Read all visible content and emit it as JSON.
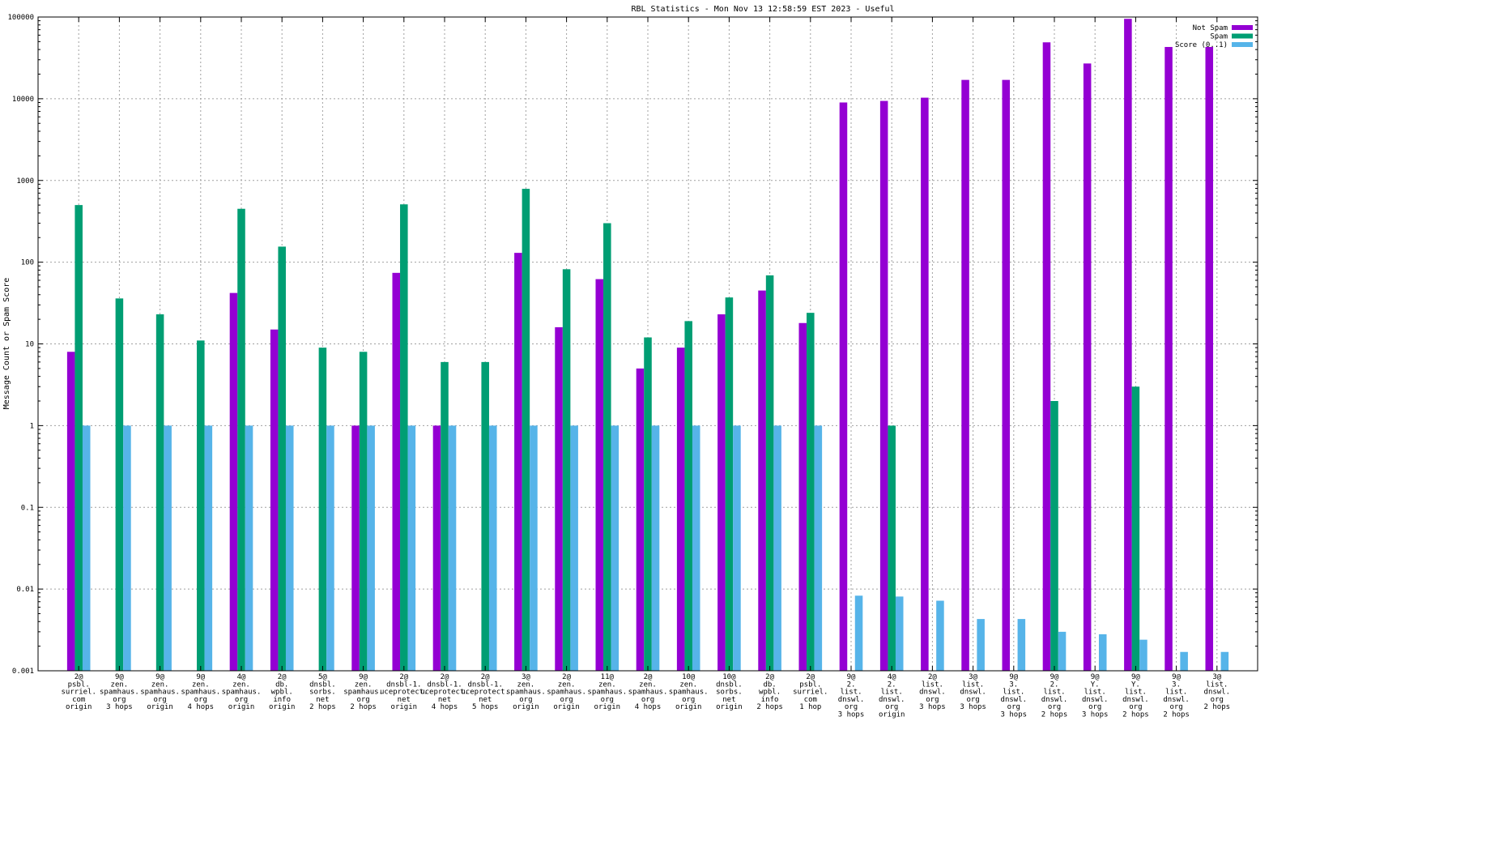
{
  "chart_data": {
    "type": "bar",
    "title": "RBL Statistics - Mon Nov 13 12:58:59 EST 2023 - Useful",
    "xlabel": "",
    "ylabel": "Message Count or Spam Score",
    "yscale": "log",
    "ylim": [
      0.001,
      100000
    ],
    "yticks": [
      "0.001",
      "0.01",
      "0.1",
      "1",
      "10",
      "100",
      "1000",
      "10000",
      "100000"
    ],
    "grid": true,
    "legend_position": "top-right",
    "categories": [
      [
        "2@",
        "psbl.",
        "surriel.",
        "com",
        "origin"
      ],
      [
        "9@",
        "zen.",
        "spamhaus.",
        "org",
        "3 hops"
      ],
      [
        "9@",
        "zen.",
        "spamhaus.",
        "org",
        "origin"
      ],
      [
        "9@",
        "zen.",
        "spamhaus.",
        "org",
        "4 hops"
      ],
      [
        "4@",
        "zen.",
        "spamhaus.",
        "org",
        "origin"
      ],
      [
        "2@",
        "db.",
        "wpbl.",
        "info",
        "origin"
      ],
      [
        "5@",
        "dnsbl.",
        "sorbs.",
        "net",
        "2 hops"
      ],
      [
        "9@",
        "zen.",
        "spamhaus.",
        "org",
        "2 hops"
      ],
      [
        "2@",
        "dnsbl-1.",
        "uceprotect.",
        "net",
        "origin"
      ],
      [
        "2@",
        "dnsbl-1.",
        "uceprotect.",
        "net",
        "4 hops"
      ],
      [
        "2@",
        "dnsbl-1.",
        "uceprotect.",
        "net",
        "5 hops"
      ],
      [
        "3@",
        "zen.",
        "spamhaus.",
        "org",
        "origin"
      ],
      [
        "2@",
        "zen.",
        "spamhaus.",
        "org",
        "origin"
      ],
      [
        "11@",
        "zen.",
        "spamhaus.",
        "org",
        "origin"
      ],
      [
        "2@",
        "zen.",
        "spamhaus.",
        "org",
        "4 hops"
      ],
      [
        "10@",
        "zen.",
        "spamhaus.",
        "org",
        "origin"
      ],
      [
        "10@",
        "dnsbl.",
        "sorbs.",
        "net",
        "origin"
      ],
      [
        "2@",
        "db.",
        "wpbl.",
        "info",
        "2 hops"
      ],
      [
        "2@",
        "psbl.",
        "surriel.",
        "com",
        "1 hop"
      ],
      [
        "9@",
        "2.",
        "list.",
        "dnswl.",
        "org",
        "3 hops"
      ],
      [
        "4@",
        "2.",
        "list.",
        "dnswl.",
        "org",
        "origin"
      ],
      [
        "2@",
        "list.",
        "dnswl.",
        "org",
        "3 hops"
      ],
      [
        "3@",
        "list.",
        "dnswl.",
        "org",
        "3 hops"
      ],
      [
        "9@",
        "3.",
        "list.",
        "dnswl.",
        "org",
        "3 hops"
      ],
      [
        "9@",
        "2.",
        "list.",
        "dnswl.",
        "org",
        "2 hops"
      ],
      [
        "9@",
        "Y.",
        "list.",
        "dnswl.",
        "org",
        "3 hops"
      ],
      [
        "9@",
        "Y.",
        "list.",
        "dnswl.",
        "org",
        "2 hops"
      ],
      [
        "9@",
        "3.",
        "list.",
        "dnswl.",
        "org",
        "2 hops"
      ],
      [
        "3@",
        "list.",
        "dnswl.",
        "org",
        "2 hops"
      ]
    ],
    "series": [
      {
        "name": "Not Spam",
        "color": "#9400d3",
        "values": [
          8,
          null,
          null,
          null,
          42,
          15,
          null,
          1,
          74,
          1,
          null,
          130,
          16,
          62,
          5,
          9,
          23,
          45,
          18,
          9000,
          9400,
          10300,
          17000,
          17000,
          49000,
          27000,
          95000,
          43000,
          43000
        ]
      },
      {
        "name": "Spam",
        "color": "#009e73",
        "values": [
          500,
          36,
          23,
          11,
          450,
          155,
          9,
          8,
          510,
          6,
          6,
          790,
          82,
          300,
          12,
          19,
          37,
          69,
          24,
          null,
          1,
          null,
          null,
          null,
          2,
          null,
          3,
          null,
          null
        ]
      },
      {
        "name": "Score (0..1)",
        "color": "#56b4e9",
        "values": [
          1,
          1,
          1,
          1,
          1,
          1,
          1,
          1,
          1,
          1,
          1,
          1,
          1,
          1,
          1,
          1,
          1,
          1,
          1,
          0.0083,
          0.0081,
          0.0072,
          0.0043,
          0.0043,
          0.003,
          0.0028,
          0.0024,
          0.0017,
          0.0017
        ]
      }
    ]
  }
}
